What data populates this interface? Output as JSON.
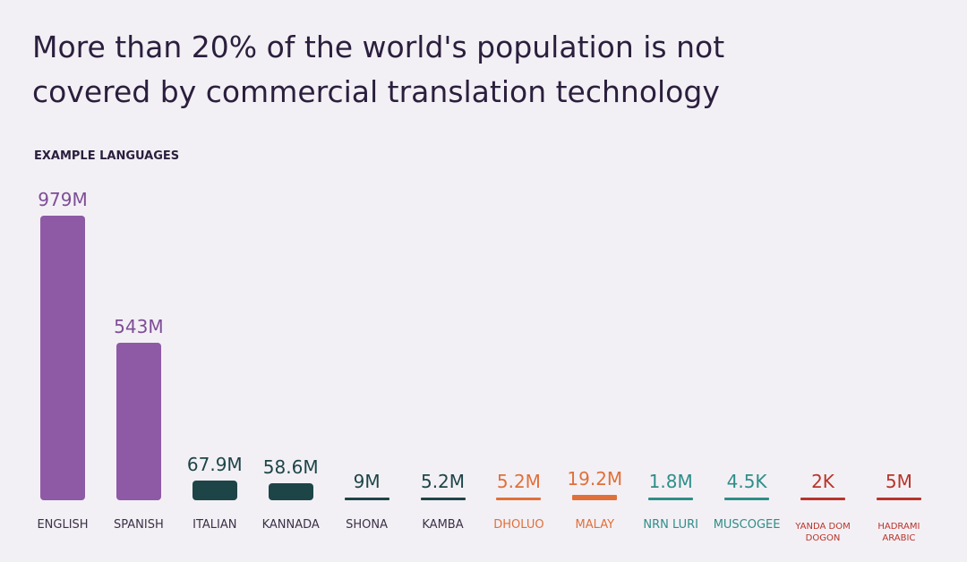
{
  "chart_data": {
    "type": "bar",
    "title": "More than 20% of the world's population is not covered by commercial translation technology",
    "subtitle": "EXAMPLE LANGUAGES",
    "categories": [
      "ENGLISH",
      "SPANISH",
      "ITALIAN",
      "KANNADA",
      "SHONA",
      "KAMBA",
      "DHOLUO",
      "MALAY",
      "NRN LURI",
      "MUSCOGEE",
      "YANDA DOM DOGON",
      "HADRAMI ARABIC"
    ],
    "values": [
      979,
      543,
      67.9,
      58.6,
      9,
      5.2,
      5.2,
      19.2,
      1.8,
      0.0045,
      0.002,
      5
    ],
    "value_labels": [
      "979M",
      "543M",
      "67.9M",
      "58.6M",
      "9M",
      "5.2M",
      "5.2M",
      "19.2M",
      "1.8M",
      "4.5K",
      "2K",
      "5M"
    ],
    "colors": [
      "#8e5aa6",
      "#8e5aa6",
      "#1d4548",
      "#1d4548",
      "#1d4548",
      "#1d4548",
      "#e0703a",
      "#e0703a",
      "#2e8e88",
      "#2e8e88",
      "#b8342a",
      "#b8342a"
    ]
  }
}
